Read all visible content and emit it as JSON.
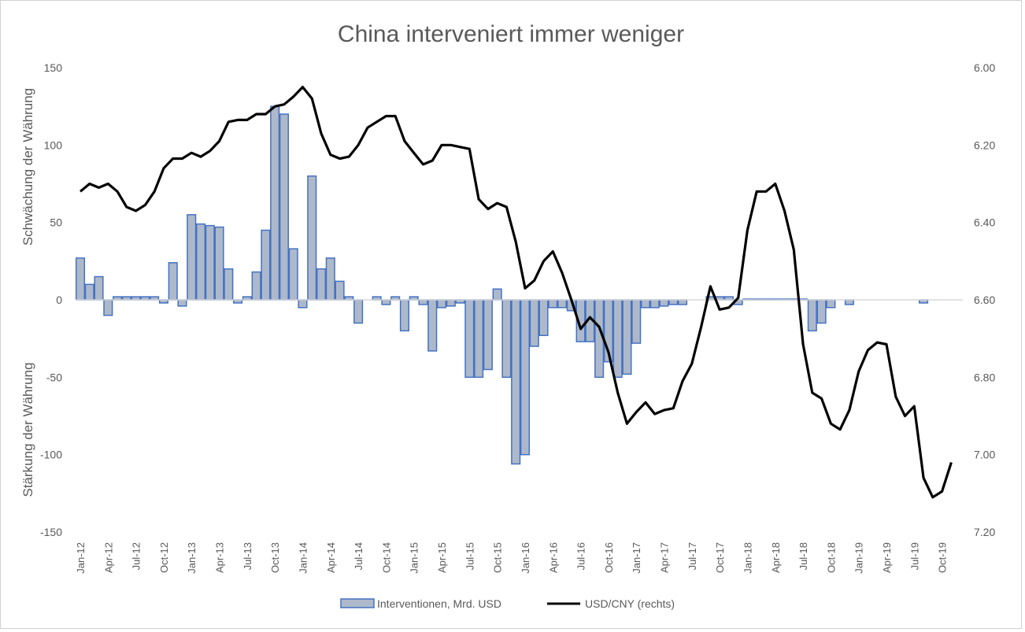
{
  "chart_data": {
    "type": "bar+line",
    "title": "China interveniert immer weniger",
    "ylabel_upper": "Schwächung der Währung",
    "ylabel_lower": "Stärkung der Währung",
    "ylim": [
      -150,
      150
    ],
    "y_ticks": [
      "150",
      "100",
      "50",
      "0",
      "-50",
      "-100",
      "-150"
    ],
    "y_tick_values": [
      150,
      100,
      50,
      0,
      -50,
      -100,
      -150
    ],
    "y2lim_inverted": [
      6.0,
      7.2
    ],
    "y2_ticks": [
      "6.00",
      "6.20",
      "6.40",
      "6.60",
      "6.80",
      "7.00",
      "7.20"
    ],
    "y2_tick_values": [
      6.0,
      6.2,
      6.4,
      6.6,
      6.8,
      7.0,
      7.2
    ],
    "grid": false,
    "legend_position": "bottom",
    "categories": [
      "Jan-12",
      "Feb-12",
      "Mar-12",
      "Apr-12",
      "May-12",
      "Jun-12",
      "Jul-12",
      "Aug-12",
      "Sep-12",
      "Oct-12",
      "Nov-12",
      "Dec-12",
      "Jan-13",
      "Feb-13",
      "Mar-13",
      "Apr-13",
      "May-13",
      "Jun-13",
      "Jul-13",
      "Aug-13",
      "Sep-13",
      "Oct-13",
      "Nov-13",
      "Dec-13",
      "Jan-14",
      "Feb-14",
      "Mar-14",
      "Apr-14",
      "May-14",
      "Jun-14",
      "Jul-14",
      "Aug-14",
      "Sep-14",
      "Oct-14",
      "Nov-14",
      "Dec-14",
      "Jan-15",
      "Feb-15",
      "Mar-15",
      "Apr-15",
      "May-15",
      "Jun-15",
      "Jul-15",
      "Aug-15",
      "Sep-15",
      "Oct-15",
      "Nov-15",
      "Dec-15",
      "Jan-16",
      "Feb-16",
      "Mar-16",
      "Apr-16",
      "May-16",
      "Jun-16",
      "Jul-16",
      "Aug-16",
      "Sep-16",
      "Oct-16",
      "Nov-16",
      "Dec-16",
      "Jan-17",
      "Feb-17",
      "Mar-17",
      "Apr-17",
      "May-17",
      "Jun-17",
      "Jul-17",
      "Aug-17",
      "Sep-17",
      "Oct-17",
      "Nov-17",
      "Dec-17",
      "Jan-18",
      "Feb-18",
      "Mar-18",
      "Apr-18",
      "May-18",
      "Jun-18",
      "Jul-18",
      "Aug-18",
      "Sep-18",
      "Oct-18",
      "Nov-18",
      "Dec-18",
      "Jan-19",
      "Feb-19",
      "Mar-19",
      "Apr-19",
      "May-19",
      "Jun-19",
      "Jul-19",
      "Aug-19",
      "Sep-19",
      "Oct-19",
      "Nov-19",
      "Dec-19"
    ],
    "series": [
      {
        "name": "Interventionen, Mrd. USD",
        "type": "bar",
        "axis": "left",
        "color": "#adb9ca",
        "edge": "#4472c4",
        "values": [
          27,
          10,
          15,
          -10,
          2,
          2,
          2,
          2,
          2,
          -2,
          24,
          -4,
          55,
          49,
          48,
          47,
          20,
          -2,
          2,
          18,
          45,
          125,
          120,
          33,
          -5,
          80,
          20,
          27,
          12,
          2,
          -15,
          0,
          2,
          -3,
          2,
          -20,
          2,
          -3,
          -33,
          -5,
          -4,
          -2,
          -50,
          -50,
          -45,
          7,
          -50,
          -106,
          -100,
          -30,
          -23,
          -5,
          -5,
          -7,
          -27,
          -27,
          -50,
          -40,
          -50,
          -48,
          -28,
          -5,
          -5,
          -4,
          -3,
          -3,
          0,
          0,
          2,
          2,
          2,
          -3,
          0.5,
          0.5,
          0.5,
          0.5,
          0.5,
          0.5,
          0.5,
          -20,
          -15,
          -5,
          0,
          -3,
          0,
          0,
          0,
          0,
          0,
          0,
          0,
          -2,
          0,
          0,
          0,
          0
        ]
      },
      {
        "name": "USD/CNY (rechts)",
        "type": "line",
        "axis": "right",
        "color": "#000000",
        "values": [
          6.32,
          6.3,
          6.31,
          6.3,
          6.32,
          6.36,
          6.37,
          6.355,
          6.32,
          6.26,
          6.235,
          6.235,
          6.22,
          6.23,
          6.215,
          6.19,
          6.14,
          6.135,
          6.135,
          6.12,
          6.12,
          6.1,
          6.095,
          6.075,
          6.05,
          6.08,
          6.17,
          6.225,
          6.235,
          6.23,
          6.2,
          6.155,
          6.14,
          6.125,
          6.125,
          6.19,
          6.22,
          6.25,
          6.24,
          6.2,
          6.2,
          6.205,
          6.21,
          6.34,
          6.365,
          6.35,
          6.36,
          6.45,
          6.57,
          6.55,
          6.5,
          6.475,
          6.53,
          6.6,
          6.675,
          6.645,
          6.67,
          6.735,
          6.84,
          6.92,
          6.89,
          6.865,
          6.895,
          6.885,
          6.88,
          6.81,
          6.765,
          6.67,
          6.565,
          6.625,
          6.62,
          6.595,
          6.42,
          6.32,
          6.32,
          6.3,
          6.37,
          6.47,
          6.715,
          6.84,
          6.855,
          6.92,
          6.935,
          6.885,
          6.785,
          6.73,
          6.71,
          6.715,
          6.85,
          6.9,
          6.875,
          7.06,
          7.11,
          7.095,
          7.02,
          null
        ]
      }
    ]
  }
}
